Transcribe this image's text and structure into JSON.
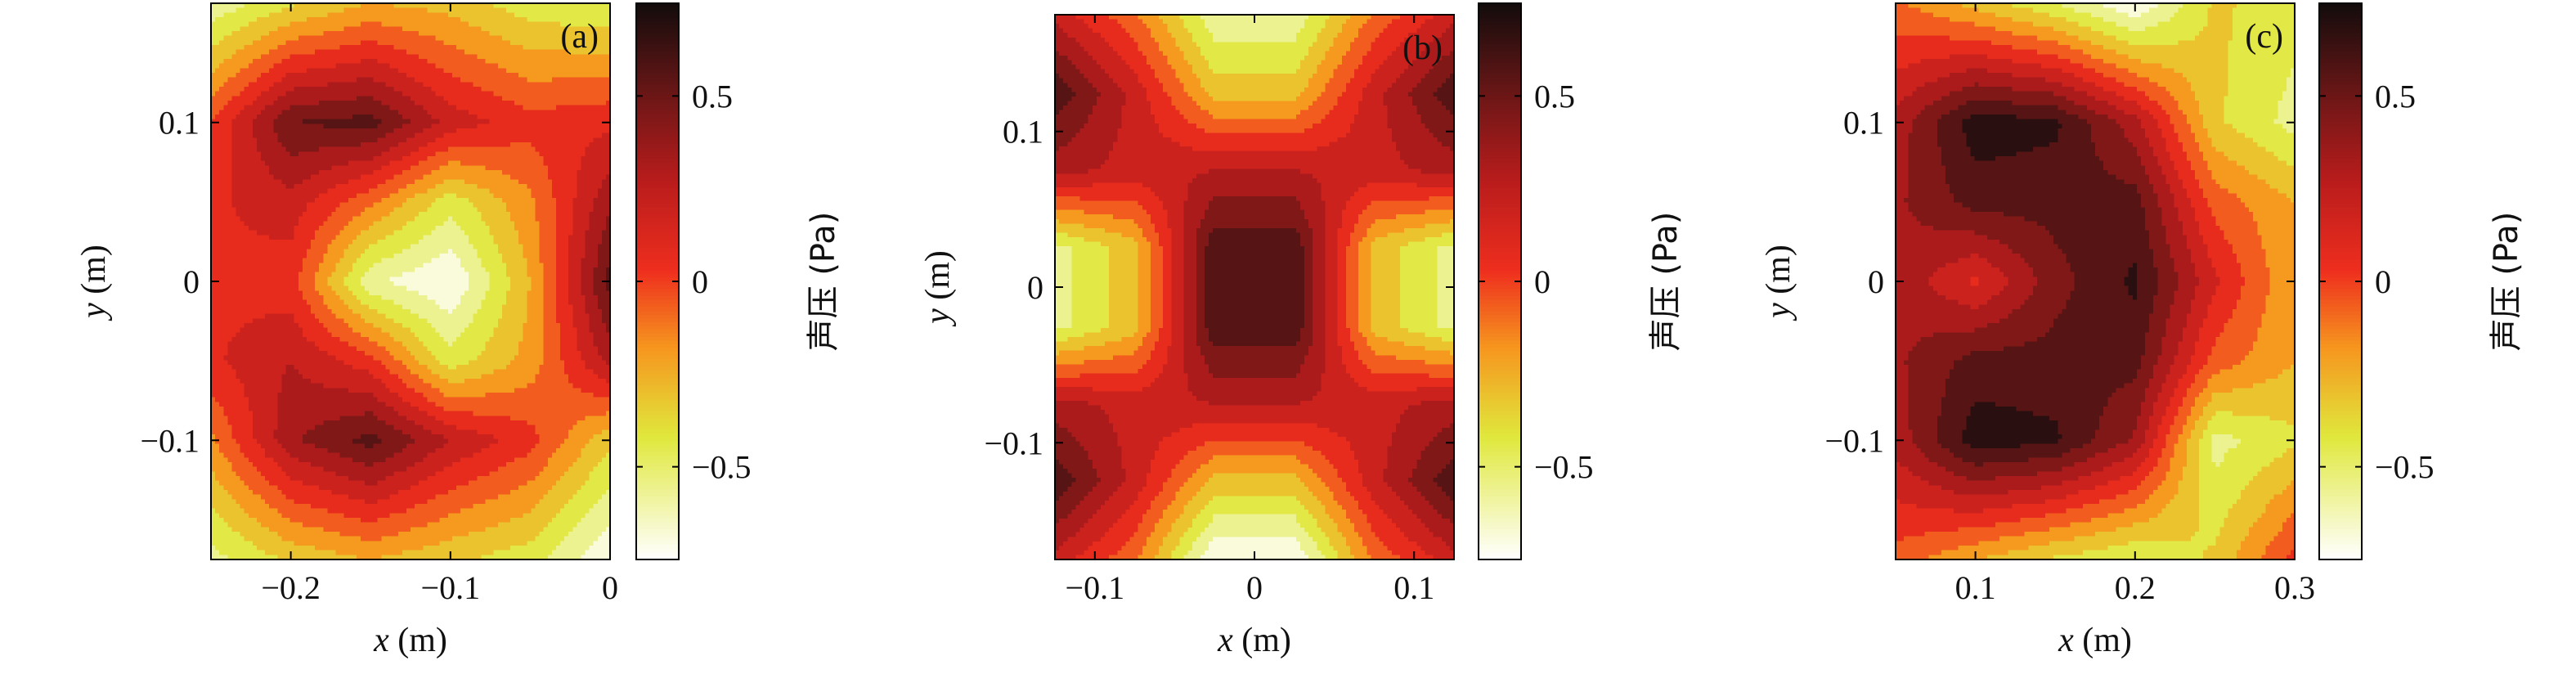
{
  "chart_data": [
    {
      "type": "heatmap",
      "panel_label": "(a)",
      "xlabel_var": "x",
      "xlabel_unit": " (m)",
      "ylabel_var": "y",
      "ylabel_unit": " (m)",
      "xlim": [
        -0.25,
        0
      ],
      "ylim": [
        -0.175,
        0.175
      ],
      "xticks": [
        -0.2,
        -0.1,
        0
      ],
      "xtick_labels": [
        "−0.2",
        "−0.1",
        "0"
      ],
      "yticks": [
        -0.1,
        0,
        0.1
      ],
      "ytick_labels": [
        "−0.1",
        "0",
        "0.1"
      ],
      "colorbar": {
        "label": "声压 (Pa)",
        "range": [
          -0.75,
          0.75
        ],
        "ticks": [
          -0.5,
          0,
          0.5
        ],
        "tick_labels": [
          "−0.5",
          "0",
          "0.5"
        ]
      },
      "x": [
        -0.25,
        -0.2,
        -0.15,
        -0.1,
        -0.05,
        0
      ],
      "y": [
        -0.175,
        -0.1,
        -0.05,
        0,
        0.05,
        0.1,
        0.175
      ],
      "z": [
        [
          -0.55,
          -0.35,
          -0.25,
          -0.35,
          -0.45,
          -0.75
        ],
        [
          -0.15,
          0.35,
          0.55,
          0.25,
          0.05,
          -0.35
        ],
        [
          0.1,
          0.25,
          0.05,
          -0.45,
          -0.2,
          0.3
        ],
        [
          0.1,
          0.05,
          -0.6,
          -0.75,
          -0.25,
          0.55
        ],
        [
          0.1,
          0.2,
          -0.1,
          -0.45,
          -0.15,
          0.35
        ],
        [
          0.0,
          0.5,
          0.55,
          0.2,
          0.05,
          0.1
        ],
        [
          -0.6,
          -0.4,
          -0.25,
          -0.3,
          -0.45,
          -0.5
        ]
      ]
    },
    {
      "type": "heatmap",
      "panel_label": "(b)",
      "xlabel_var": "x",
      "xlabel_unit": " (m)",
      "ylabel_var": "y",
      "ylabel_unit": " (m)",
      "xlim": [
        -0.125,
        0.125
      ],
      "ylim": [
        -0.175,
        0.175
      ],
      "xticks": [
        -0.1,
        0,
        0.1
      ],
      "xtick_labels": [
        "−0.1",
        "0",
        "0.1"
      ],
      "yticks": [
        -0.1,
        0,
        0.1
      ],
      "ytick_labels": [
        "−0.1",
        "0",
        "0.1"
      ],
      "colorbar": {
        "label": "声压 (Pa)",
        "range": [
          -0.75,
          0.75
        ],
        "ticks": [
          -0.5,
          0,
          0.5
        ],
        "tick_labels": [
          "−0.5",
          "0",
          "0.5"
        ]
      },
      "x": [
        -0.125,
        -0.075,
        -0.025,
        0.025,
        0.075,
        0.125
      ],
      "y": [
        -0.175,
        -0.125,
        -0.075,
        -0.025,
        0.025,
        0.075,
        0.125,
        0.175
      ],
      "z": [
        [
          0.2,
          -0.1,
          -0.75,
          -0.75,
          -0.1,
          0.2
        ],
        [
          0.6,
          0.2,
          -0.3,
          -0.3,
          0.2,
          0.6
        ],
        [
          0.3,
          0.2,
          0.25,
          0.25,
          0.2,
          0.3
        ],
        [
          -0.55,
          -0.3,
          0.6,
          0.6,
          -0.3,
          -0.55
        ],
        [
          -0.55,
          -0.3,
          0.6,
          0.6,
          -0.3,
          -0.55
        ],
        [
          0.3,
          0.2,
          0.25,
          0.25,
          0.2,
          0.3
        ],
        [
          0.6,
          0.2,
          -0.3,
          -0.3,
          0.2,
          0.6
        ],
        [
          0.2,
          -0.1,
          -0.6,
          -0.6,
          -0.1,
          0.2
        ]
      ]
    },
    {
      "type": "heatmap",
      "panel_label": "(c)",
      "xlabel_var": "x",
      "xlabel_unit": " (m)",
      "ylabel_var": "y",
      "ylabel_unit": " (m)",
      "xlim": [
        0.05,
        0.3
      ],
      "ylim": [
        -0.175,
        0.175
      ],
      "xticks": [
        0.1,
        0.2,
        0.3
      ],
      "xtick_labels": [
        "0.1",
        "0.2",
        "0.3"
      ],
      "yticks": [
        -0.1,
        0,
        0.1
      ],
      "ytick_labels": [
        "−0.1",
        "0",
        "0.1"
      ],
      "colorbar": {
        "label": "声压 (Pa)",
        "range": [
          -0.75,
          0.75
        ],
        "ticks": [
          -0.5,
          0,
          0.5
        ],
        "tick_labels": [
          "−0.5",
          "0",
          "0.5"
        ]
      },
      "x": [
        0.05,
        0.1,
        0.15,
        0.2,
        0.25,
        0.3
      ],
      "y": [
        -0.175,
        -0.1,
        -0.05,
        0,
        0.05,
        0.1,
        0.175
      ],
      "z": [
        [
          -0.05,
          -0.25,
          -0.4,
          -0.5,
          -0.35,
          0.05
        ],
        [
          0.3,
          0.7,
          0.65,
          0.35,
          -0.55,
          -0.4
        ],
        [
          0.35,
          0.55,
          0.55,
          0.55,
          -0.05,
          -0.25
        ],
        [
          0.35,
          0.1,
          0.45,
          0.65,
          0.15,
          -0.25
        ],
        [
          0.35,
          0.55,
          0.55,
          0.55,
          -0.05,
          -0.25
        ],
        [
          0.3,
          0.7,
          0.65,
          0.3,
          -0.35,
          -0.55
        ],
        [
          -0.1,
          -0.3,
          -0.5,
          -0.75,
          -0.35,
          -0.45
        ]
      ]
    }
  ]
}
